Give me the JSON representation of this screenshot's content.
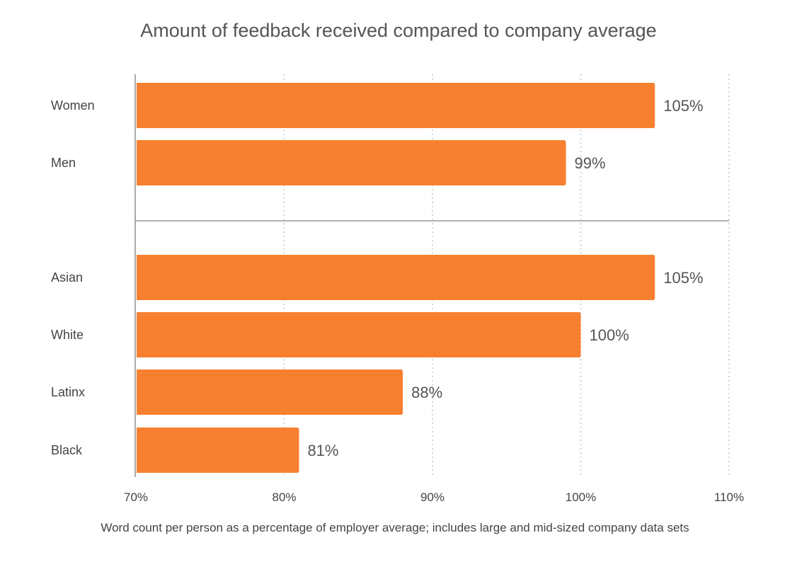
{
  "chart_data": {
    "type": "bar",
    "orientation": "horizontal",
    "title": "Amount of feedback received compared to company average",
    "subtitle": "Word count per person as a percentage of employer average; includes large and mid-sized company data sets",
    "groups": [
      {
        "categories": [
          "Women",
          "Men"
        ],
        "values": [
          105,
          99
        ]
      },
      {
        "categories": [
          "Asian",
          "White",
          "Latinx",
          "Black"
        ],
        "values": [
          105,
          100,
          88,
          81
        ]
      }
    ],
    "data_labels": [
      "105%",
      "99%",
      "105%",
      "100%",
      "88%",
      "81%"
    ],
    "xlim": [
      70,
      110
    ],
    "x_ticks": [
      70,
      80,
      90,
      100,
      110
    ],
    "x_tick_labels": [
      "70%",
      "80%",
      "90%",
      "100%",
      "110%"
    ],
    "grid": "vertical dotted",
    "bar_color": "#F78030",
    "xlabel": "",
    "ylabel": ""
  }
}
